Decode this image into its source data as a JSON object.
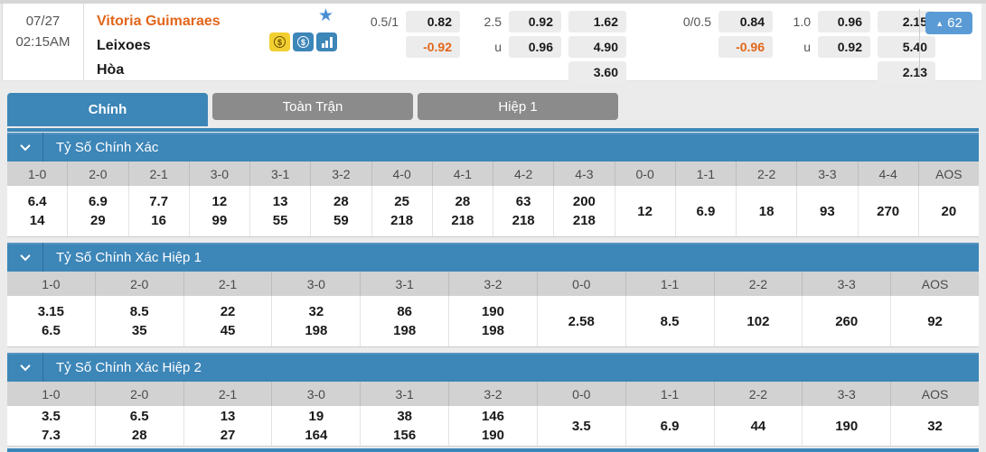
{
  "match_header": {
    "date": "07/27",
    "time": "02:15AM",
    "home_team": "Vitoria Guimaraes",
    "away_team": "Leixoes",
    "draw_label": "Hòa",
    "more_count": "62",
    "icons": [
      "star-icon",
      "coin-dollar-icon",
      "dollar-circle-icon",
      "bar-chart-icon"
    ],
    "odds_rows": [
      [
        {
          "type": "label",
          "v": "0.5/1",
          "name": "ft-handicap-line"
        },
        {
          "type": "box",
          "v": "0.82",
          "name": "ft-handicap-home-odds"
        },
        {
          "type": "label",
          "v": "2.5",
          "name": "ft-total-over-line"
        },
        {
          "type": "box",
          "v": "0.92",
          "name": "ft-total-over-odds"
        },
        {
          "type": "box",
          "v": "1.62",
          "name": "ft-1x2-home-odds"
        },
        {
          "type": "blank"
        },
        {
          "type": "label",
          "v": "0/0.5",
          "name": "h1-handicap-line"
        },
        {
          "type": "box",
          "v": "0.84",
          "name": "h1-handicap-home-odds"
        },
        {
          "type": "label",
          "v": "1.0",
          "name": "h1-total-over-line"
        },
        {
          "type": "box",
          "v": "0.96",
          "name": "h1-total-over-odds"
        },
        {
          "type": "box",
          "v": "2.15",
          "name": "h1-1x2-home-odds"
        }
      ],
      [
        {
          "type": "blank"
        },
        {
          "type": "neg",
          "v": "-0.92",
          "name": "ft-handicap-away-odds"
        },
        {
          "type": "label",
          "v": "u",
          "name": "ft-total-under-label"
        },
        {
          "type": "box",
          "v": "0.96",
          "name": "ft-total-under-odds"
        },
        {
          "type": "box",
          "v": "4.90",
          "name": "ft-1x2-draw-odds"
        },
        {
          "type": "blank"
        },
        {
          "type": "blank"
        },
        {
          "type": "neg",
          "v": "-0.96",
          "name": "h1-handicap-away-odds"
        },
        {
          "type": "label",
          "v": "u",
          "name": "h1-total-under-label"
        },
        {
          "type": "box",
          "v": "0.92",
          "name": "h1-total-under-odds"
        },
        {
          "type": "box",
          "v": "5.40",
          "name": "h1-1x2-draw-odds"
        }
      ],
      [
        {
          "type": "blank"
        },
        {
          "type": "blank"
        },
        {
          "type": "blank"
        },
        {
          "type": "blank"
        },
        {
          "type": "box",
          "v": "3.60",
          "name": "ft-1x2-away-odds"
        },
        {
          "type": "blank"
        },
        {
          "type": "blank"
        },
        {
          "type": "blank"
        },
        {
          "type": "blank"
        },
        {
          "type": "blank"
        },
        {
          "type": "box",
          "v": "2.13",
          "name": "h1-1x2-away-odds"
        }
      ]
    ]
  },
  "tabs": [
    {
      "label": "Chính",
      "active": true
    },
    {
      "label": "Toàn Trận",
      "active": false
    },
    {
      "label": "Hiệp 1",
      "active": false
    }
  ],
  "sections": [
    {
      "title": "Tỷ Số Chính Xác",
      "columns": [
        "1-0",
        "2-0",
        "2-1",
        "3-0",
        "3-1",
        "3-2",
        "4-0",
        "4-1",
        "4-2",
        "4-3",
        "0-0",
        "1-1",
        "2-2",
        "3-3",
        "4-4",
        "AOS"
      ],
      "odds": [
        [
          "6.4",
          "14"
        ],
        [
          "6.9",
          "29"
        ],
        [
          "7.7",
          "16"
        ],
        [
          "12",
          "99"
        ],
        [
          "13",
          "55"
        ],
        [
          "28",
          "59"
        ],
        [
          "25",
          "218"
        ],
        [
          "28",
          "218"
        ],
        [
          "63",
          "218"
        ],
        [
          "200",
          "218"
        ],
        [
          "12"
        ],
        [
          "6.9"
        ],
        [
          "18"
        ],
        [
          "93"
        ],
        [
          "270"
        ],
        [
          "20"
        ]
      ]
    },
    {
      "title": "Tỷ Số Chính Xác Hiệp 1",
      "columns": [
        "1-0",
        "2-0",
        "2-1",
        "3-0",
        "3-1",
        "3-2",
        "0-0",
        "1-1",
        "2-2",
        "3-3",
        "AOS"
      ],
      "odds": [
        [
          "3.15",
          "6.5"
        ],
        [
          "8.5",
          "35"
        ],
        [
          "22",
          "45"
        ],
        [
          "32",
          "198"
        ],
        [
          "86",
          "198"
        ],
        [
          "190",
          "198"
        ],
        [
          "2.58"
        ],
        [
          "8.5"
        ],
        [
          "102"
        ],
        [
          "260"
        ],
        [
          "92"
        ]
      ]
    },
    {
      "title": "Tỷ Số Chính Xác Hiệp 2",
      "columns": [
        "1-0",
        "2-0",
        "2-1",
        "3-0",
        "3-1",
        "3-2",
        "0-0",
        "1-1",
        "2-2",
        "3-3",
        "AOS"
      ],
      "odds": [
        [
          "3.5",
          "7.3"
        ],
        [
          "6.5",
          "28"
        ],
        [
          "13",
          "27"
        ],
        [
          "19",
          "164"
        ],
        [
          "38",
          "156"
        ],
        [
          "146",
          "190"
        ],
        [
          "3.5"
        ],
        [
          "6.9"
        ],
        [
          "44"
        ],
        [
          "190"
        ],
        [
          "32"
        ]
      ]
    }
  ],
  "colors": {
    "accent_blue": "#3d86b8",
    "badge_blue": "#5b9bd5",
    "inactive_tab_gray": "#8b8b8b",
    "table_header_gray": "#d2d2d2",
    "odds_box_gray": "#ececec",
    "orange": "#e2661a",
    "page_bg": "#ebebeb"
  }
}
